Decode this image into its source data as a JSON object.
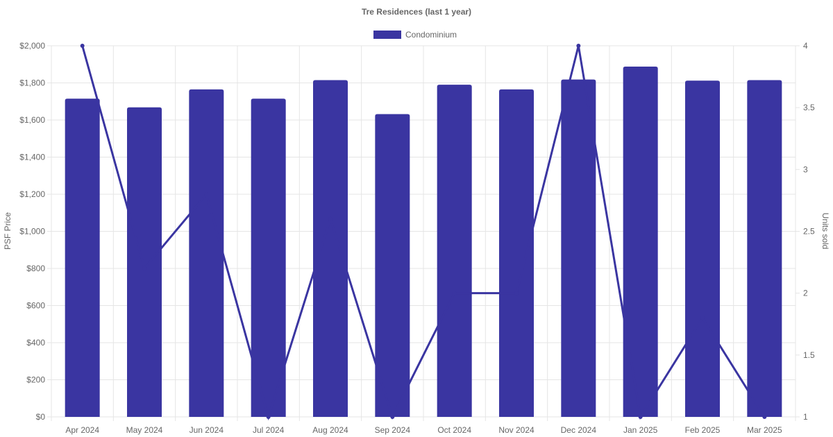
{
  "chart_data": {
    "type": "bar",
    "title": "Tre Residences (last 1 year)",
    "categories": [
      "Apr 2024",
      "May 2024",
      "Jun 2024",
      "Jul 2024",
      "Aug 2024",
      "Sep 2024",
      "Oct 2024",
      "Nov 2024",
      "Dec 2024",
      "Jan 2025",
      "Feb 2025",
      "Mar 2025"
    ],
    "series": [
      {
        "name": "Condominium",
        "type": "bar",
        "axis": "left",
        "values": [
          1715,
          1668,
          1765,
          1715,
          1815,
          1632,
          1790,
          1765,
          1818,
          1888,
          1812,
          1815
        ]
      },
      {
        "type": "line",
        "axis": "right",
        "values": [
          4,
          2.2,
          2.8,
          1,
          2.6,
          1,
          2,
          2,
          4,
          1,
          1.8,
          1
        ]
      }
    ],
    "left_axis": {
      "label": "PSF Price",
      "range": [
        0,
        2000
      ],
      "ticks": [
        0,
        200,
        400,
        600,
        800,
        1000,
        1200,
        1400,
        1600,
        1800,
        2000
      ],
      "tick_labels": [
        "$0",
        "$200",
        "$400",
        "$600",
        "$800",
        "$1,000",
        "$1,200",
        "$1,400",
        "$1,600",
        "$1,800",
        "$2,000"
      ]
    },
    "right_axis": {
      "label": "Units sold",
      "range": [
        1,
        4
      ],
      "ticks": [
        1,
        1.5,
        2,
        2.5,
        3,
        3.5,
        4
      ],
      "tick_labels": [
        "1",
        "1.5",
        "2",
        "2.5",
        "3",
        "3.5",
        "4"
      ]
    },
    "legend": {
      "position": "top",
      "entries": [
        "Condominium"
      ]
    },
    "grid": true,
    "colors": {
      "bar": "#3a35a1",
      "line": "#3a35a1",
      "grid": "#e5e5e5",
      "text": "#666666"
    }
  }
}
